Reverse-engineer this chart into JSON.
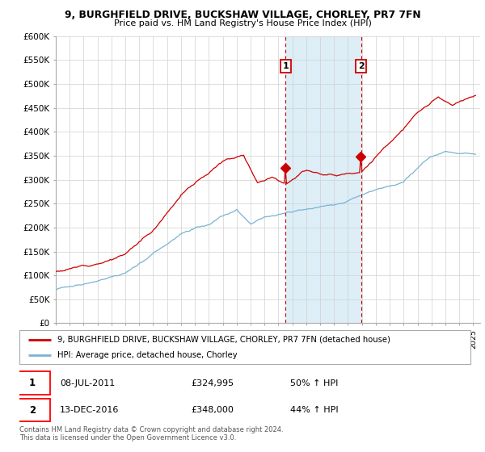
{
  "title1": "9, BURGHFIELD DRIVE, BUCKSHAW VILLAGE, CHORLEY, PR7 7FN",
  "title2": "Price paid vs. HM Land Registry's House Price Index (HPI)",
  "ylabel_ticks": [
    "£0",
    "£50K",
    "£100K",
    "£150K",
    "£200K",
    "£250K",
    "£300K",
    "£350K",
    "£400K",
    "£450K",
    "£500K",
    "£550K",
    "£600K"
  ],
  "ytick_values": [
    0,
    50000,
    100000,
    150000,
    200000,
    250000,
    300000,
    350000,
    400000,
    450000,
    500000,
    550000,
    600000
  ],
  "hpi_color": "#7ab3d4",
  "price_color": "#cc0000",
  "shaded_region_color": "#ddeef7",
  "sale1_date": "08-JUL-2011",
  "sale1_price": 324995,
  "sale1_pct": "50% ↑ HPI",
  "sale2_date": "13-DEC-2016",
  "sale2_price": 348000,
  "sale2_pct": "44% ↑ HPI",
  "legend1": "9, BURGHFIELD DRIVE, BUCKSHAW VILLAGE, CHORLEY, PR7 7FN (detached house)",
  "legend2": "HPI: Average price, detached house, Chorley",
  "footer": "Contains HM Land Registry data © Crown copyright and database right 2024.\nThis data is licensed under the Open Government Licence v3.0.",
  "xmin": 1995.0,
  "xmax": 2025.5,
  "ymin": 0,
  "ymax": 600000,
  "sale1_x": 2011.52,
  "sale2_x": 2016.95,
  "bg_color": "#ffffff",
  "grid_color": "#d0d0d0"
}
